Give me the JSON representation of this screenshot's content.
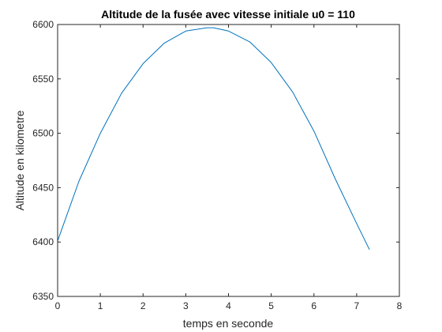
{
  "chart_data": {
    "type": "line",
    "title": "Altitude de la fusée avec vitesse initiale u0 = 110",
    "xlabel": "temps en seconde",
    "ylabel": "Altitude en kilometre",
    "xlim": [
      0,
      8
    ],
    "ylim": [
      6350,
      6600
    ],
    "xticks": [
      0,
      1,
      2,
      3,
      4,
      5,
      6,
      7,
      8
    ],
    "yticks": [
      6350,
      6400,
      6450,
      6500,
      6550,
      6600
    ],
    "grid": false,
    "series": [
      {
        "color": "#0072BD",
        "x": [
          0,
          0.5,
          1.0,
          1.5,
          2.0,
          2.5,
          3.0,
          3.5,
          3.65,
          4.0,
          4.5,
          5.0,
          5.5,
          6.0,
          6.5,
          7.0,
          7.3
        ],
        "y": [
          6401,
          6456,
          6500,
          6537,
          6564,
          6583,
          6594,
          6597,
          6597,
          6594,
          6584,
          6565,
          6538,
          6502,
          6458,
          6417,
          6393
        ]
      }
    ]
  }
}
